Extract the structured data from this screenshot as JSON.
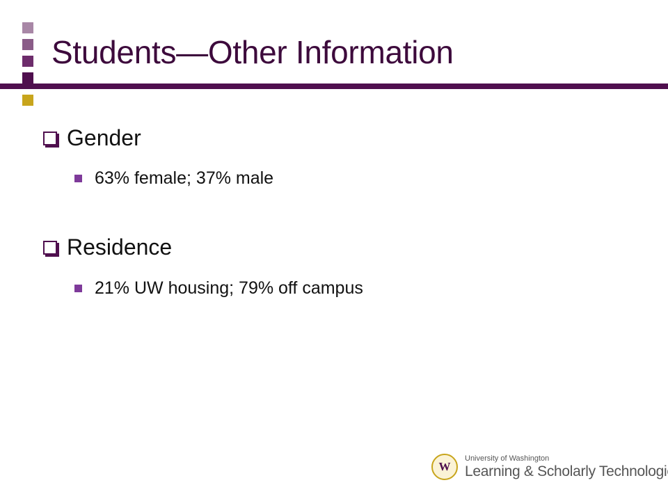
{
  "slide": {
    "title": "Students—Other Information",
    "colors": {
      "accent_purple": "#4f0f4e",
      "accent_gold": "#c8a51c",
      "bullet_purple": "#7e3a9a"
    },
    "bullets": [
      {
        "label": "Gender",
        "icon": "square-checkbox-bullet-icon",
        "sub": [
          "63% female; 37% male"
        ]
      },
      {
        "label": "Residence",
        "icon": "square-checkbox-bullet-icon",
        "sub": [
          "21% UW housing; 79% off campus"
        ]
      }
    ]
  },
  "logo": {
    "top_text": "University of Washington",
    "bottom_text": "Learning & Scholarly Technologies",
    "seal_letter": "W"
  }
}
